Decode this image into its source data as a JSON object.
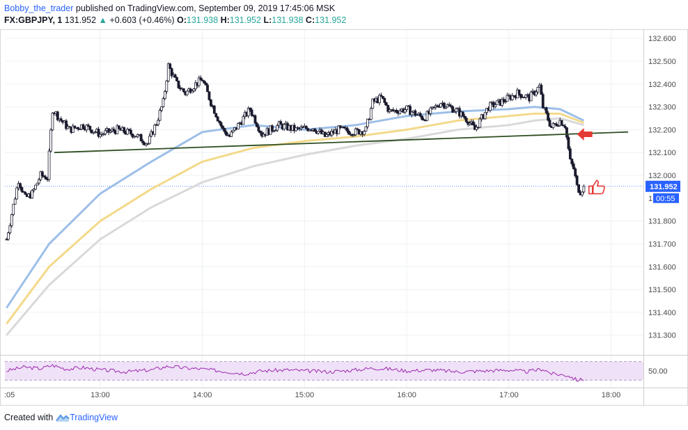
{
  "header": {
    "author": "Bobby_the_trader",
    "published": "published on TradingView.com, September 09, 2019 17:45:06 MSK",
    "symbol": "FX:GBPJPY, 1",
    "last": "131.952",
    "change": "+0.603 (+0.46%)",
    "o_label": "O:",
    "o_value": "131.938",
    "h_label": "H:",
    "h_value": "131.952",
    "l_label": "L:",
    "l_value": "131.938",
    "c_label": "C:",
    "c_value": "131.952"
  },
  "footer": {
    "created_with": "Created with",
    "brand": "TradingView"
  },
  "colors": {
    "candle": "#1b1b2e",
    "ma_fast": "#9dbfe8",
    "ma_mid": "#f3d98a",
    "ma_slow": "#d9d9d9",
    "trendline": "#2e4d22",
    "rsi": "#9c27b0",
    "rsi_band": "#efe1f7",
    "arrow": "#e53935",
    "price_tag": "#2962ff"
  },
  "chart_data": [
    {
      "type": "candlestick",
      "title": "",
      "xlabel": "",
      "ylabel": "",
      "x_ticks": [
        ":05",
        "13:00",
        "14:00",
        "15:00",
        "16:00",
        "17:00",
        "18:00"
      ],
      "y_ticks": [
        "132.600",
        "132.500",
        "132.400",
        "132.300",
        "132.200",
        "132.100",
        "132.000",
        "131.800",
        "131.700",
        "131.600",
        "131.500",
        "131.400",
        "131.300"
      ],
      "ylim": [
        131.22,
        132.64
      ],
      "last_price_label": "131.952",
      "countdown_label": "00:55",
      "hidden_tick_stub": "1",
      "grid": true,
      "close_path": [
        [
          "12:05",
          131.72
        ],
        [
          "12:12",
          131.98
        ],
        [
          "12:16",
          131.9
        ],
        [
          "12:20",
          131.92
        ],
        [
          "12:25",
          132.0
        ],
        [
          "12:29",
          131.99
        ],
        [
          "12:32",
          132.29
        ],
        [
          "12:36",
          132.25
        ],
        [
          "12:42",
          132.2
        ],
        [
          "12:50",
          132.22
        ],
        [
          "13:00",
          132.18
        ],
        [
          "13:10",
          132.2
        ],
        [
          "13:20",
          132.18
        ],
        [
          "13:28",
          132.14
        ],
        [
          "13:33",
          132.23
        ],
        [
          "13:37",
          132.32
        ],
        [
          "13:40",
          132.48
        ],
        [
          "13:45",
          132.4
        ],
        [
          "13:50",
          132.36
        ],
        [
          "13:56",
          132.4
        ],
        [
          "14:00",
          132.42
        ],
        [
          "14:05",
          132.32
        ],
        [
          "14:12",
          132.2
        ],
        [
          "14:16",
          132.17
        ],
        [
          "14:24",
          132.25
        ],
        [
          "14:28",
          132.29
        ],
        [
          "14:35",
          132.18
        ],
        [
          "14:45",
          132.22
        ],
        [
          "14:55",
          132.2
        ],
        [
          "15:05",
          132.21
        ],
        [
          "15:12",
          132.17
        ],
        [
          "15:20",
          132.2
        ],
        [
          "15:30",
          132.19
        ],
        [
          "15:36",
          132.2
        ],
        [
          "15:40",
          132.32
        ],
        [
          "15:45",
          132.34
        ],
        [
          "15:50",
          132.28
        ],
        [
          "16:00",
          132.29
        ],
        [
          "16:10",
          132.25
        ],
        [
          "16:20",
          132.32
        ],
        [
          "16:30",
          132.28
        ],
        [
          "16:36",
          132.24
        ],
        [
          "16:40",
          132.2
        ],
        [
          "16:48",
          132.3
        ],
        [
          "16:55",
          132.32
        ],
        [
          "17:05",
          132.36
        ],
        [
          "17:12",
          132.34
        ],
        [
          "17:18",
          132.39
        ],
        [
          "17:20",
          132.3
        ],
        [
          "17:25",
          132.21
        ],
        [
          "17:30",
          132.24
        ],
        [
          "17:33",
          132.22
        ],
        [
          "17:36",
          132.06
        ],
        [
          "17:38",
          132.03
        ],
        [
          "17:40",
          131.95
        ],
        [
          "17:42",
          131.93
        ],
        [
          "17:44",
          131.952
        ]
      ],
      "series": [
        {
          "key": "ma_fast",
          "values": [
            [
              "12:05",
              131.42
            ],
            [
              "12:30",
              131.7
            ],
            [
              "13:00",
              131.92
            ],
            [
              "13:30",
              132.06
            ],
            [
              "14:00",
              132.19
            ],
            [
              "14:30",
              132.22
            ],
            [
              "15:00",
              132.2
            ],
            [
              "15:30",
              132.22
            ],
            [
              "16:00",
              132.26
            ],
            [
              "16:30",
              132.28
            ],
            [
              "17:00",
              132.29
            ],
            [
              "17:15",
              132.3
            ],
            [
              "17:30",
              132.29
            ],
            [
              "17:44",
              132.24
            ]
          ]
        },
        {
          "key": "ma_mid",
          "values": [
            [
              "12:05",
              131.35
            ],
            [
              "12:30",
              131.6
            ],
            [
              "13:00",
              131.8
            ],
            [
              "13:30",
              131.94
            ],
            [
              "14:00",
              132.06
            ],
            [
              "14:30",
              132.12
            ],
            [
              "15:00",
              132.15
            ],
            [
              "15:30",
              132.17
            ],
            [
              "16:00",
              132.2
            ],
            [
              "16:30",
              132.24
            ],
            [
              "17:00",
              132.26
            ],
            [
              "17:15",
              132.27
            ],
            [
              "17:30",
              132.27
            ],
            [
              "17:44",
              132.23
            ]
          ]
        },
        {
          "key": "ma_slow",
          "values": [
            [
              "12:05",
              131.3
            ],
            [
              "12:30",
              131.52
            ],
            [
              "13:00",
              131.72
            ],
            [
              "13:30",
              131.86
            ],
            [
              "14:00",
              131.97
            ],
            [
              "14:30",
              132.04
            ],
            [
              "15:00",
              132.09
            ],
            [
              "15:30",
              132.13
            ],
            [
              "16:00",
              132.16
            ],
            [
              "16:30",
              132.2
            ],
            [
              "17:00",
              132.22
            ],
            [
              "17:15",
              132.24
            ],
            [
              "17:30",
              132.25
            ],
            [
              "17:44",
              132.22
            ]
          ]
        }
      ],
      "trendline": [
        [
          "12:33",
          132.1
        ],
        [
          "18:10",
          132.19
        ]
      ],
      "annotations": [
        {
          "kind": "arrow-left",
          "at": [
            "17:40",
            132.18
          ]
        },
        {
          "kind": "thumbs-up",
          "at": [
            "17:47",
            131.95
          ]
        }
      ]
    },
    {
      "type": "line",
      "title": "",
      "indicator": "RSI",
      "y_ticks": [
        "50.00"
      ],
      "ylim": [
        20,
        80
      ],
      "band": [
        30,
        70
      ],
      "values": [
        [
          "12:05",
          50
        ],
        [
          "12:15",
          58
        ],
        [
          "12:25",
          55
        ],
        [
          "12:32",
          62
        ],
        [
          "12:40",
          54
        ],
        [
          "12:50",
          57
        ],
        [
          "13:00",
          52
        ],
        [
          "13:15",
          48
        ],
        [
          "13:30",
          52
        ],
        [
          "13:40",
          60
        ],
        [
          "13:50",
          56
        ],
        [
          "14:00",
          54
        ],
        [
          "14:15",
          48
        ],
        [
          "14:25",
          44
        ],
        [
          "14:35",
          50
        ],
        [
          "14:50",
          52
        ],
        [
          "15:00",
          50
        ],
        [
          "15:15",
          48
        ],
        [
          "15:30",
          52
        ],
        [
          "15:40",
          56
        ],
        [
          "15:50",
          54
        ],
        [
          "16:00",
          50
        ],
        [
          "16:15",
          52
        ],
        [
          "16:30",
          48
        ],
        [
          "16:45",
          50
        ],
        [
          "17:00",
          52
        ],
        [
          "17:10",
          48
        ],
        [
          "17:20",
          54
        ],
        [
          "17:25",
          44
        ],
        [
          "17:35",
          40
        ],
        [
          "17:40",
          30
        ],
        [
          "17:44",
          32
        ]
      ]
    }
  ]
}
